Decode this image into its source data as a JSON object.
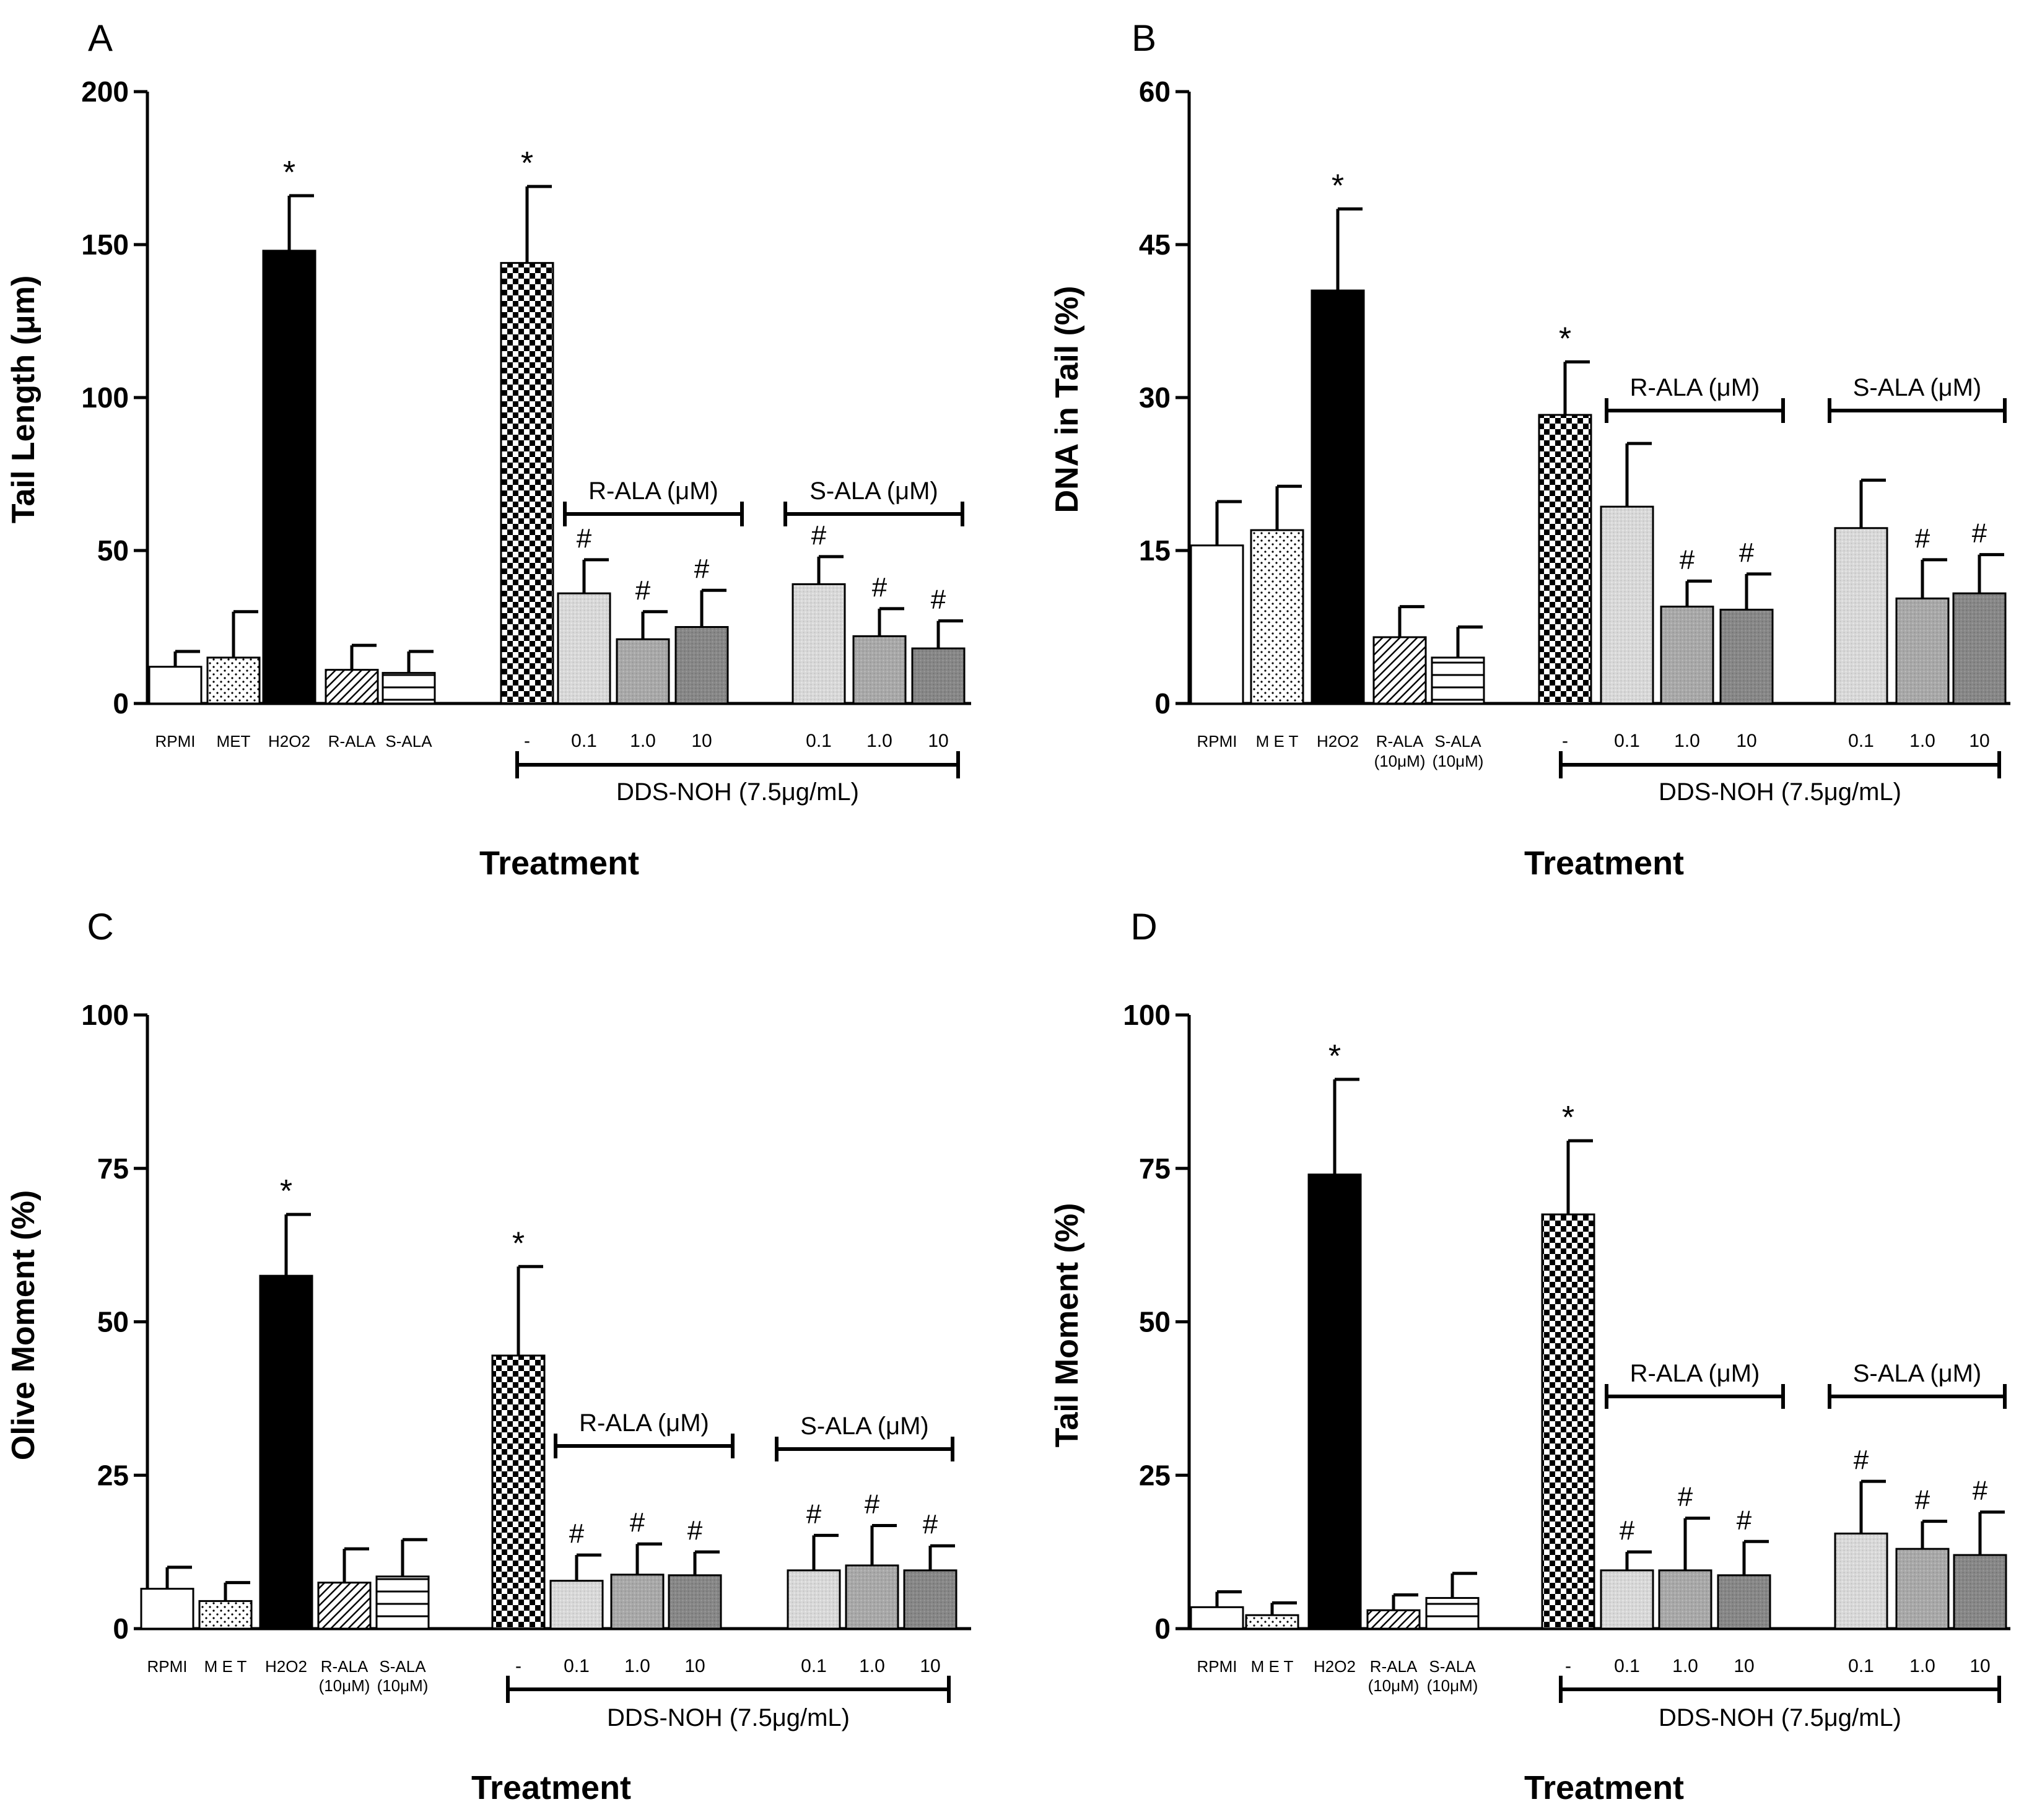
{
  "figure": {
    "panels": [
      "A",
      "B",
      "C",
      "D"
    ],
    "treatment_label": "Treatment",
    "group_label": "DDS-NOH (7.5μg/mL)",
    "r_ala_label": "R-ALA (μM)",
    "s_ala_label": "S-ALA (μM)"
  },
  "chart_data": [
    {
      "panel": "A",
      "type": "bar",
      "ylabel": "Tail Length (μm)",
      "xlabel": "Treatment",
      "ylim": [
        0,
        200
      ],
      "yticks": [
        0,
        50,
        100,
        150,
        200
      ],
      "categories": [
        "RPMI",
        "MET",
        "H2O2",
        "R-ALA",
        "S-ALA",
        "-",
        "0.1",
        "1.0",
        "10",
        "0.1",
        "1.0",
        "10"
      ],
      "values": [
        12,
        15,
        148,
        11,
        10,
        144,
        36,
        21,
        25,
        39,
        22,
        18
      ],
      "errors": [
        5,
        15,
        18,
        8,
        7,
        25,
        11,
        9,
        12,
        9,
        9,
        9
      ],
      "significance": [
        "",
        "",
        "*",
        "",
        "",
        "*",
        "#",
        "#",
        "#",
        "#",
        "#",
        "#"
      ]
    },
    {
      "panel": "B",
      "type": "bar",
      "ylabel": "DNA in Tail (%)",
      "xlabel": "Treatment",
      "ylim": [
        0,
        60
      ],
      "yticks": [
        0,
        15,
        30,
        45,
        60
      ],
      "categories": [
        "RPMI",
        "M E T",
        "H2O2",
        "R-ALA (10μM)",
        "S-ALA (10μM)",
        "-",
        "0.1",
        "1.0",
        "10",
        "0.1",
        "1.0",
        "10"
      ],
      "values": [
        15.5,
        17,
        40.5,
        6.5,
        4.5,
        28.3,
        19.3,
        9.5,
        9.2,
        17.2,
        10.3,
        10.8
      ],
      "errors": [
        4.3,
        4.3,
        8,
        3,
        3,
        5.2,
        6.2,
        2.5,
        3.5,
        4.7,
        3.8,
        3.8
      ],
      "significance": [
        "",
        "",
        "*",
        "",
        "",
        "*",
        "",
        "#",
        "#",
        "",
        "#",
        "#"
      ]
    },
    {
      "panel": "C",
      "type": "bar",
      "ylabel": "Olive Moment (%)",
      "xlabel": "Treatment",
      "ylim": [
        0,
        100
      ],
      "yticks": [
        0,
        25,
        50,
        75,
        100
      ],
      "categories": [
        "RPMI",
        "M E T",
        "H2O2",
        "R-ALA (10μM)",
        "S-ALA (10μM)",
        "-",
        "0.1",
        "1.0",
        "10",
        "0.1",
        "1.0",
        "10"
      ],
      "values": [
        6.5,
        4.5,
        57.5,
        7.5,
        8.5,
        44.5,
        7.8,
        8.8,
        8.7,
        9.5,
        10.3,
        9.5
      ],
      "errors": [
        3.5,
        3,
        10,
        5.5,
        6,
        14.5,
        4.2,
        5,
        3.8,
        5.7,
        6.5,
        4
      ],
      "significance": [
        "",
        "",
        "*",
        "",
        "",
        "*",
        "#",
        "#",
        "#",
        "#",
        "#",
        "#"
      ]
    },
    {
      "panel": "D",
      "type": "bar",
      "ylabel": "Tail Moment (%)",
      "xlabel": "Treatment",
      "ylim": [
        0,
        100
      ],
      "yticks": [
        0,
        25,
        50,
        75,
        100
      ],
      "categories": [
        "RPMI",
        "M E T",
        "H2O2",
        "R-ALA (10μM)",
        "S-ALA (10μM)",
        "-",
        "0.1",
        "1.0",
        "10",
        "0.1",
        "1.0",
        "10"
      ],
      "values": [
        3.5,
        2.2,
        74,
        3,
        5,
        67.5,
        9.5,
        9.5,
        8.7,
        15.5,
        13,
        12
      ],
      "errors": [
        2.5,
        2,
        15.5,
        2.5,
        4,
        12,
        3,
        8.5,
        5.5,
        8.5,
        4.5,
        7
      ],
      "significance": [
        "",
        "",
        "*",
        "",
        "",
        "*",
        "#",
        "#",
        "#",
        "#",
        "#",
        "#"
      ]
    }
  ]
}
